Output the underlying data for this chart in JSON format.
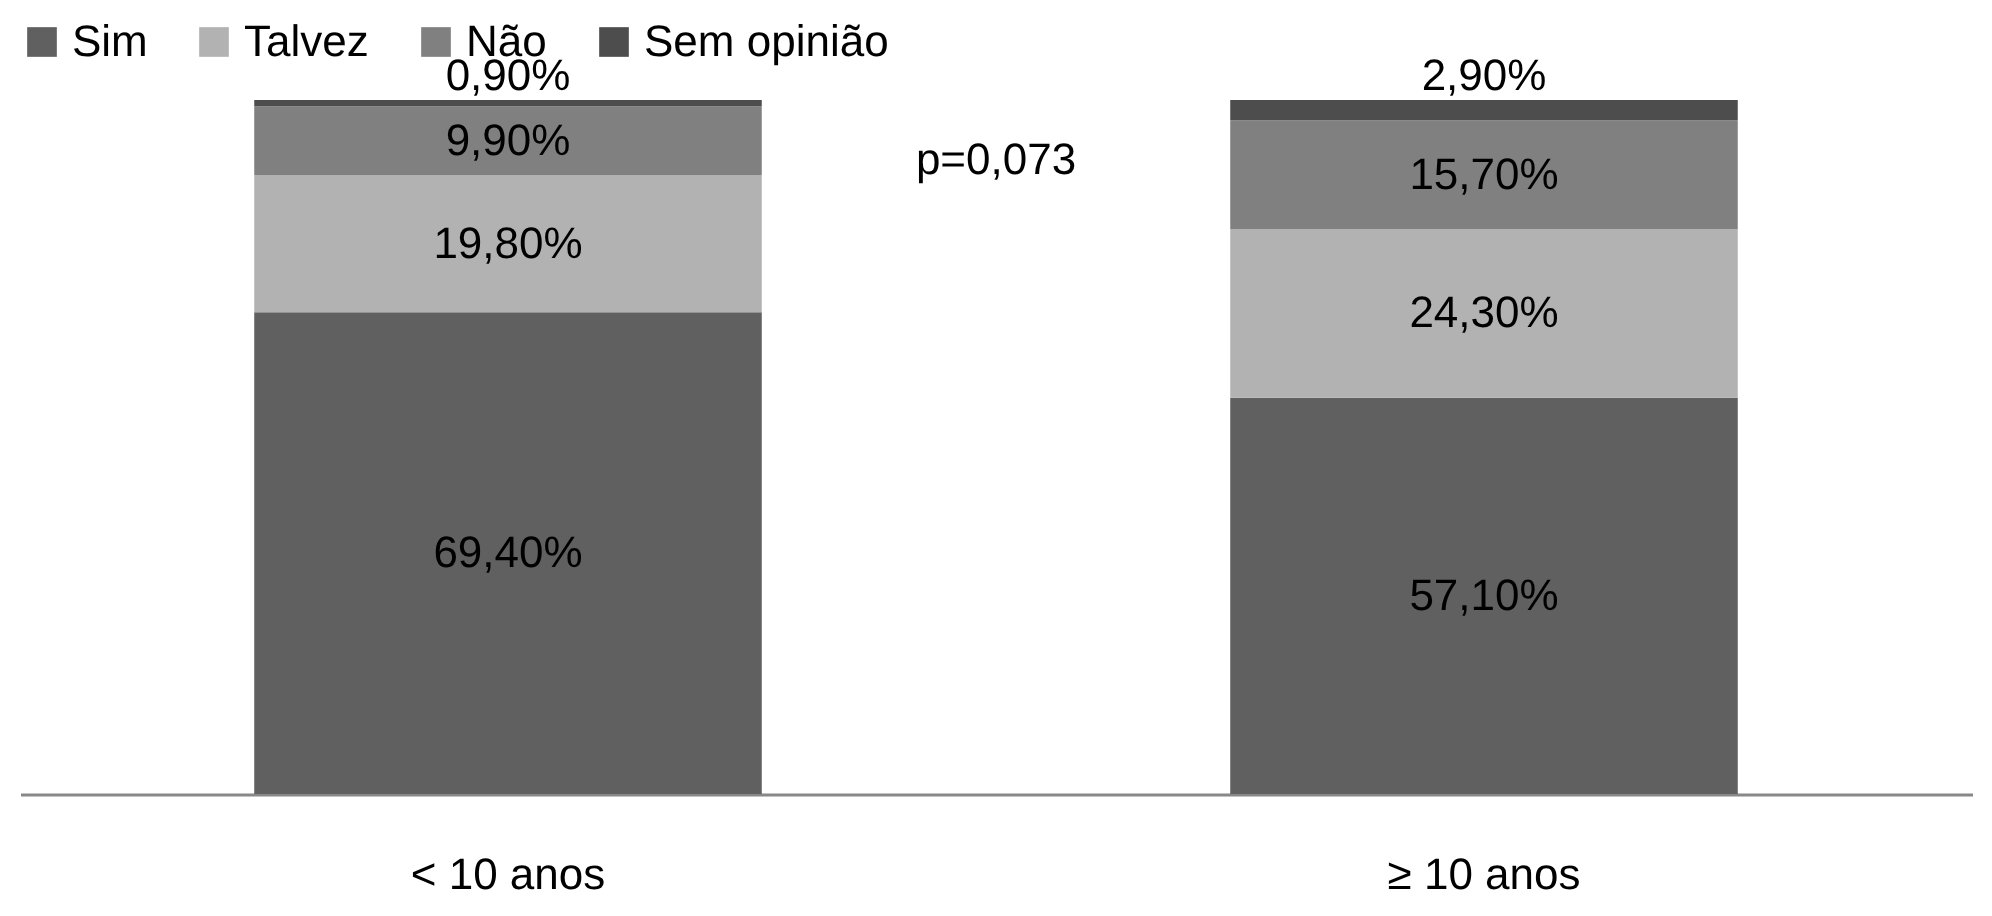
{
  "chart_data": {
    "type": "bar",
    "stacked": true,
    "legend": "top",
    "categories": [
      "< 10 anos",
      "≥ 10 anos"
    ],
    "series": [
      {
        "name": "Sim",
        "color": "#606060",
        "values": [
          69.4,
          57.1
        ],
        "value_labels": [
          "69,40%",
          "57,10%"
        ]
      },
      {
        "name": "Talvez",
        "color": "#b2b2b2",
        "values": [
          19.8,
          24.3
        ],
        "value_labels": [
          "19,80%",
          "24,30%"
        ]
      },
      {
        "name": "Não",
        "color": "#808080",
        "values": [
          9.9,
          15.7
        ],
        "value_labels": [
          "9,90%",
          "15,70%"
        ]
      },
      {
        "name": "Sem opinião",
        "color": "#4d4d4d",
        "values": [
          0.9,
          2.9
        ],
        "value_labels": [
          "0,90%",
          "2,90%"
        ]
      }
    ],
    "annotations": [
      "p=0,073"
    ]
  }
}
